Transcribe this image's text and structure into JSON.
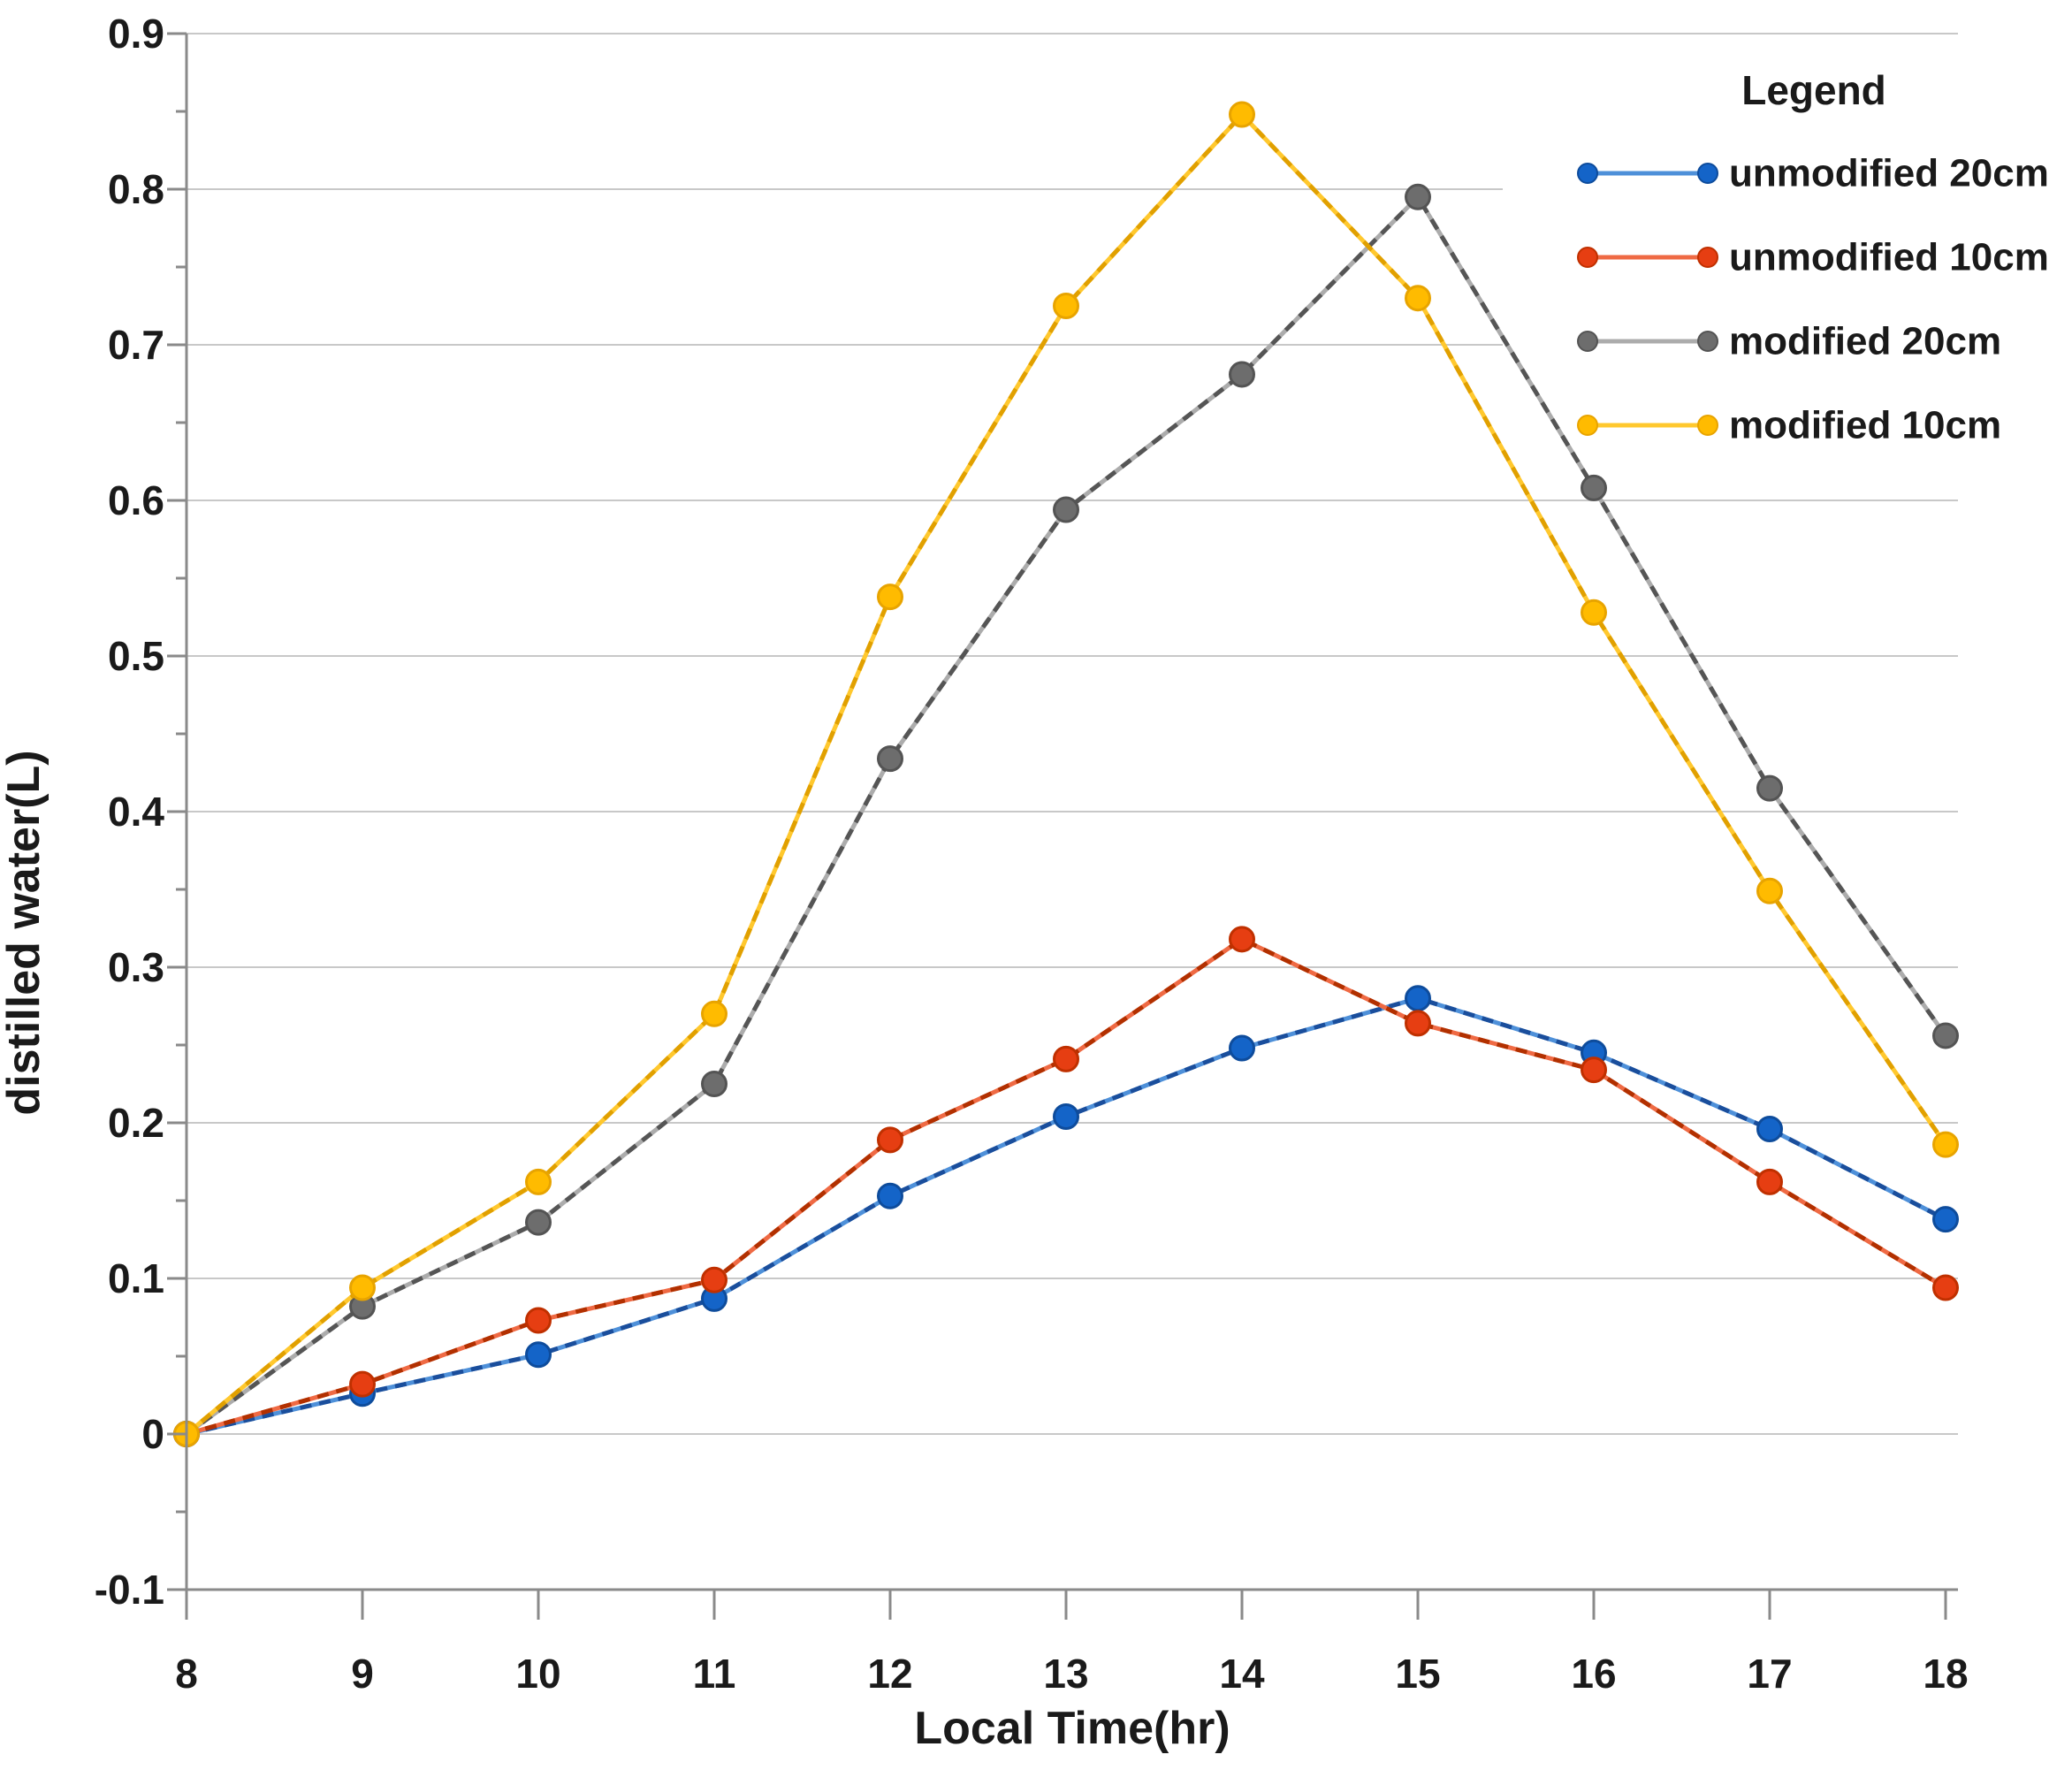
{
  "chart_data": {
    "type": "line",
    "title": "",
    "xlabel": "Local Time(hr)",
    "ylabel": "distilled water(L)",
    "x": [
      8,
      9,
      10,
      11,
      12,
      13,
      14,
      15,
      16,
      17,
      18
    ],
    "xtick_labels": [
      "8",
      "9",
      "10",
      "11",
      "12",
      "13",
      "14",
      "15",
      "16",
      "17",
      "18"
    ],
    "ylim": [
      -0.1,
      0.9
    ],
    "yticks": [
      {
        "value": 0.9,
        "label": "0.9"
      },
      {
        "value": 0.8,
        "label": "0.8"
      },
      {
        "value": 0.7,
        "label": "0.7"
      },
      {
        "value": 0.6,
        "label": "0.6"
      },
      {
        "value": 0.5,
        "label": "0.5"
      },
      {
        "value": 0.4,
        "label": "0.4"
      },
      {
        "value": 0.3,
        "label": "0.3"
      },
      {
        "value": 0.2,
        "label": "0.2"
      },
      {
        "value": 0.1,
        "label": "0.1"
      },
      {
        "value": 0.0,
        "label": "0"
      },
      {
        "value": -0.1,
        "label": "-0.1"
      }
    ],
    "grid": true,
    "legend": {
      "title": "Legend",
      "position": "top-right",
      "entries": [
        "unmodified 20cm",
        "unmodified 10cm",
        "modified 20cm",
        "modified 10cm"
      ]
    },
    "series": [
      {
        "name": "unmodified 20cm",
        "marker_color": "#1464C8",
        "marker_edge": "#0E4C9C",
        "line_color": "#4E90D9",
        "dash_color": "#1A4E9C",
        "values": [
          0,
          0.026,
          0.051,
          0.087,
          0.153,
          0.204,
          0.248,
          0.28,
          0.245,
          0.196,
          0.138
        ]
      },
      {
        "name": "unmodified 10cm",
        "marker_color": "#E63E12",
        "marker_edge": "#C03000",
        "line_color": "#EF6A44",
        "dash_color": "#B23000",
        "values": [
          0,
          0.032,
          0.073,
          0.099,
          0.189,
          0.241,
          0.318,
          0.264,
          0.234,
          0.162,
          0.094
        ]
      },
      {
        "name": "modified 20cm",
        "marker_color": "#6D6D6D",
        "marker_edge": "#545454",
        "line_color": "#ACACAC",
        "dash_color": "#555555",
        "values": [
          0,
          0.082,
          0.136,
          0.225,
          0.434,
          0.594,
          0.681,
          0.795,
          0.608,
          0.415,
          0.256
        ]
      },
      {
        "name": "modified 10cm",
        "marker_color": "#FFBB00",
        "marker_edge": "#E8A400",
        "line_color": "#FFC82E",
        "dash_color": "#E1A000",
        "values": [
          0,
          0.094,
          0.162,
          0.27,
          0.538,
          0.725,
          0.848,
          0.73,
          0.528,
          0.349,
          0.186
        ]
      }
    ],
    "colors": {
      "gridline": "#C8C8C8",
      "axis": "#8A8A8A",
      "text": "#1A1A1A",
      "background": "#FFFFFF"
    }
  }
}
